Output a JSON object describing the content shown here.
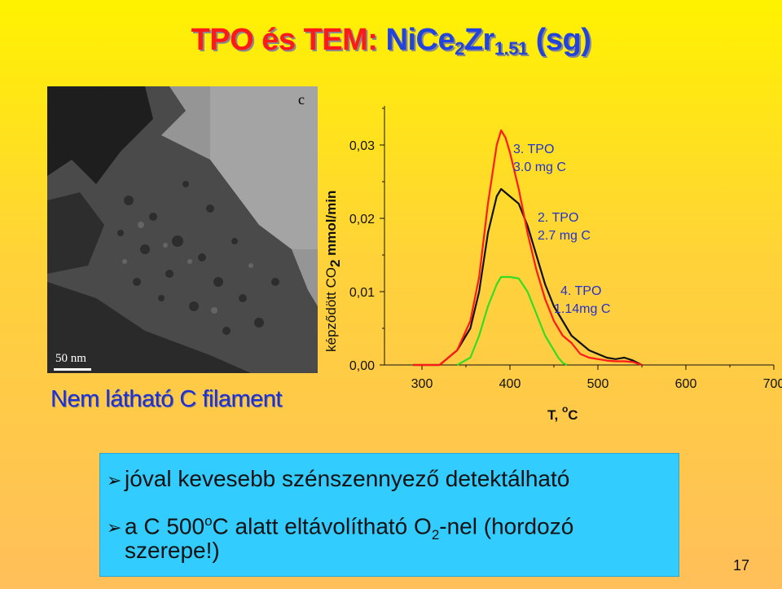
{
  "slide": {
    "title_part1": "TPO és TEM: ",
    "title_part2_main": "NiCe",
    "title_sub1": "2",
    "title_part2_b": "Zr",
    "title_sub2": "1.51",
    "title_part3": " (sg)",
    "page_number": "17"
  },
  "image": {
    "corner_label": "c",
    "scale_bar": "50 nm",
    "caption": "Nem látható C filament"
  },
  "bullets": [
    {
      "text": "jóval kevesebb szénszennyező detektálható"
    },
    {
      "text_a": "a C 500",
      "sup": "o",
      "text_b": "C alatt eltávolítható O",
      "sub": "2",
      "text_c": "-nel (hordozó",
      "line2": "szerepe!)"
    }
  ],
  "colors": {
    "red": "#ff1a1a",
    "blue": "#2244dd",
    "black_curve": "#111111",
    "green_curve": "#33dd22",
    "box": "#33ccff"
  },
  "chart_data": {
    "type": "line",
    "xlabel_main": "T, ",
    "xlabel_sup": "o",
    "xlabel_unit": "C",
    "ylabel_main": "képződött CO",
    "ylabel_sub": "2",
    "ylabel_unit": " mmol/min",
    "xlim": [
      230,
      700
    ],
    "ylim": [
      0,
      0.036
    ],
    "xticks": [
      300,
      400,
      500,
      600,
      700
    ],
    "xtick_labels": [
      "300",
      "400",
      "500",
      "600",
      "700"
    ],
    "yticks": [
      0,
      0.01,
      0.02,
      0.03
    ],
    "ytick_labels": [
      "0,00",
      "0,01",
      "0,02",
      "0,03"
    ],
    "series": [
      {
        "name_line1": "3. TPO",
        "name_line2": "3.0 mg C",
        "color": "#ff1a1a",
        "x": [
          290,
          320,
          340,
          355,
          365,
          375,
          385,
          390,
          395,
          400,
          410,
          420,
          430,
          440,
          450,
          460,
          470,
          480,
          490,
          500,
          510,
          520,
          530,
          540,
          550
        ],
        "y": [
          0,
          0,
          0.002,
          0.006,
          0.012,
          0.022,
          0.03,
          0.032,
          0.031,
          0.029,
          0.024,
          0.018,
          0.013,
          0.009,
          0.006,
          0.004,
          0.003,
          0.0015,
          0.001,
          0.0008,
          0.0006,
          0.0005,
          0.0005,
          0.0004,
          0
        ]
      },
      {
        "name_line1": "2. TPO",
        "name_line2": "2.7 mg C",
        "color": "#111111",
        "x": [
          290,
          320,
          340,
          355,
          365,
          375,
          385,
          390,
          400,
          410,
          420,
          430,
          440,
          450,
          460,
          470,
          480,
          490,
          500,
          510,
          520,
          530,
          540,
          550
        ],
        "y": [
          0,
          0,
          0.002,
          0.005,
          0.01,
          0.018,
          0.023,
          0.024,
          0.023,
          0.022,
          0.019,
          0.015,
          0.011,
          0.008,
          0.006,
          0.004,
          0.003,
          0.002,
          0.0015,
          0.001,
          0.0008,
          0.001,
          0.0006,
          0
        ]
      },
      {
        "name_line1": "4. TPO",
        "name_line2": "1.14mg C",
        "color": "#33dd22",
        "x": [
          340,
          355,
          365,
          375,
          385,
          390,
          400,
          410,
          420,
          430,
          440,
          450,
          455,
          460,
          465
        ],
        "y": [
          0,
          0.001,
          0.004,
          0.008,
          0.011,
          0.012,
          0.012,
          0.0118,
          0.01,
          0.007,
          0.004,
          0.002,
          0.001,
          0.0003,
          0
        ]
      }
    ]
  }
}
